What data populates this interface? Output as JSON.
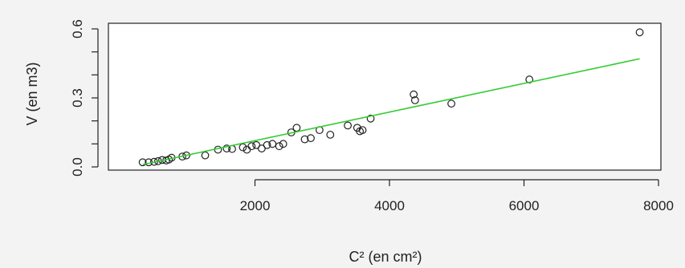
{
  "chart_data": {
    "type": "scatter",
    "xlabel": "C² (en cm²)",
    "ylabel": "V (en m3)",
    "xlim": [
      0,
      8000
    ],
    "ylim": [
      0,
      0.6
    ],
    "xticks": [
      2000,
      4000,
      6000,
      8000
    ],
    "xtick_labels": [
      "2000",
      "4000",
      "6000",
      "8000"
    ],
    "yticks": [
      0.0,
      0.3,
      0.6
    ],
    "ytick_labels": [
      "0.0",
      "0.3",
      "0.6"
    ],
    "grid": false,
    "series": [
      {
        "marker": "open-circle",
        "color": "#222222",
        "points": [
          {
            "x": 330,
            "y": 0.02
          },
          {
            "x": 420,
            "y": 0.02
          },
          {
            "x": 500,
            "y": 0.022
          },
          {
            "x": 560,
            "y": 0.025
          },
          {
            "x": 620,
            "y": 0.03
          },
          {
            "x": 680,
            "y": 0.028
          },
          {
            "x": 720,
            "y": 0.032
          },
          {
            "x": 760,
            "y": 0.04
          },
          {
            "x": 920,
            "y": 0.045
          },
          {
            "x": 980,
            "y": 0.05
          },
          {
            "x": 1260,
            "y": 0.05
          },
          {
            "x": 1450,
            "y": 0.075
          },
          {
            "x": 1580,
            "y": 0.08
          },
          {
            "x": 1660,
            "y": 0.078
          },
          {
            "x": 1820,
            "y": 0.085
          },
          {
            "x": 1880,
            "y": 0.075
          },
          {
            "x": 1950,
            "y": 0.09
          },
          {
            "x": 2020,
            "y": 0.095
          },
          {
            "x": 2100,
            "y": 0.08
          },
          {
            "x": 2180,
            "y": 0.095
          },
          {
            "x": 2260,
            "y": 0.1
          },
          {
            "x": 2360,
            "y": 0.09
          },
          {
            "x": 2420,
            "y": 0.1
          },
          {
            "x": 2540,
            "y": 0.15
          },
          {
            "x": 2620,
            "y": 0.17
          },
          {
            "x": 2740,
            "y": 0.12
          },
          {
            "x": 2830,
            "y": 0.125
          },
          {
            "x": 2960,
            "y": 0.16
          },
          {
            "x": 3120,
            "y": 0.14
          },
          {
            "x": 3380,
            "y": 0.18
          },
          {
            "x": 3520,
            "y": 0.17
          },
          {
            "x": 3560,
            "y": 0.155
          },
          {
            "x": 3600,
            "y": 0.16
          },
          {
            "x": 3720,
            "y": 0.21
          },
          {
            "x": 4360,
            "y": 0.315
          },
          {
            "x": 4380,
            "y": 0.29
          },
          {
            "x": 4920,
            "y": 0.275
          },
          {
            "x": 6080,
            "y": 0.38
          },
          {
            "x": 7720,
            "y": 0.585
          }
        ]
      },
      {
        "type": "line",
        "color": "#33cc33",
        "points": [
          {
            "x": 330,
            "y": 0.01
          },
          {
            "x": 7720,
            "y": 0.47
          }
        ]
      }
    ]
  }
}
